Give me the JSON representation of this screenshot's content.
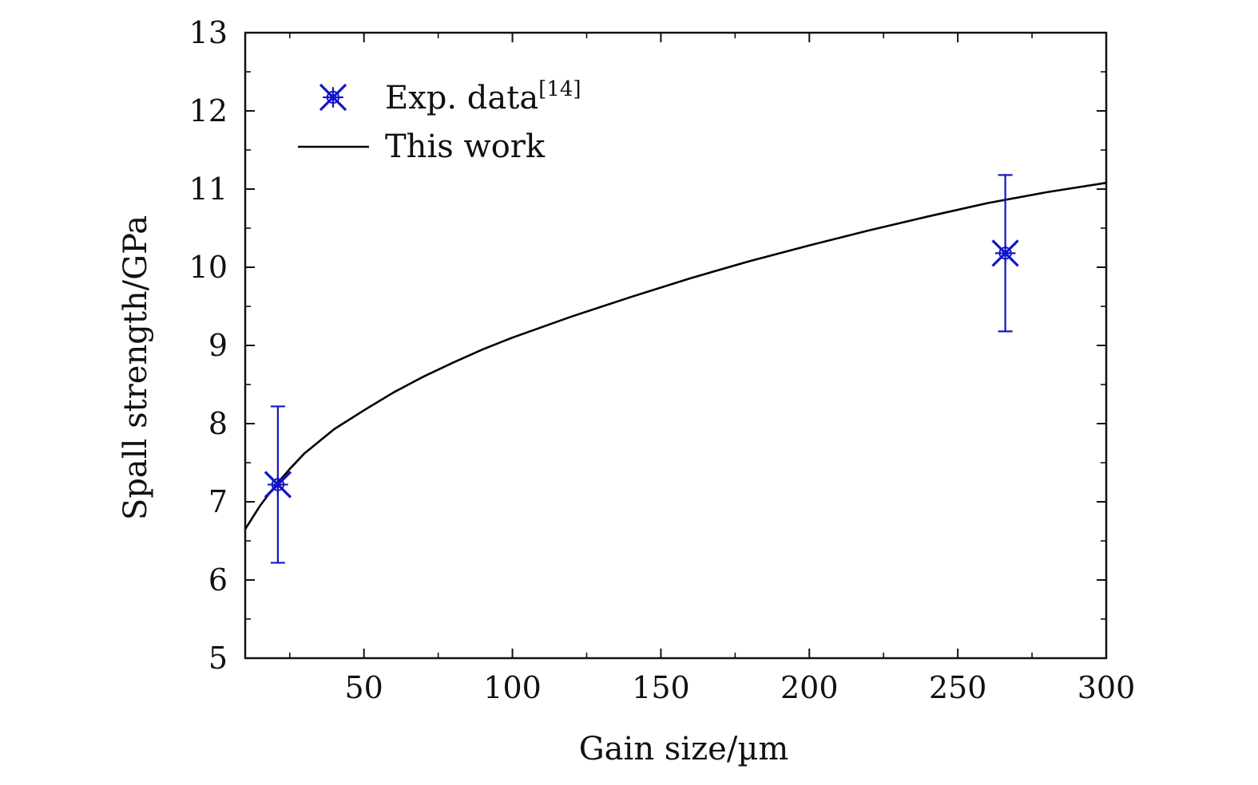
{
  "chart_data": {
    "type": "line",
    "title": "",
    "xlabel": "Gain size/µm",
    "ylabel": "Spall strength/GPa",
    "xlim": [
      10,
      300
    ],
    "ylim": [
      5,
      13
    ],
    "x_ticks": [
      "50",
      "100",
      "150",
      "200",
      "250",
      "300"
    ],
    "y_ticks": [
      "5",
      "6",
      "7",
      "8",
      "9",
      "10",
      "11",
      "12",
      "13"
    ],
    "grid": false,
    "legend_position": "top-left",
    "series": [
      {
        "name": "Exp. data",
        "name_superscript": "[14]",
        "kind": "scatter",
        "marker": "asterisk-star",
        "color": "#1414c8",
        "points": [
          {
            "x": 21,
            "y": 7.22,
            "err_low": 6.22,
            "err_high": 8.22
          },
          {
            "x": 266,
            "y": 10.18,
            "err_low": 9.18,
            "err_high": 11.18
          }
        ]
      },
      {
        "name": "This work",
        "kind": "line",
        "color": "#000000",
        "x": [
          10,
          15,
          20,
          25,
          30,
          40,
          50,
          60,
          70,
          80,
          90,
          100,
          120,
          140,
          160,
          180,
          200,
          220,
          240,
          260,
          280,
          300
        ],
        "y": [
          6.65,
          6.95,
          7.2,
          7.42,
          7.62,
          7.93,
          8.17,
          8.4,
          8.6,
          8.78,
          8.95,
          9.1,
          9.37,
          9.62,
          9.86,
          10.08,
          10.28,
          10.47,
          10.65,
          10.82,
          10.96,
          11.08
        ]
      }
    ]
  }
}
